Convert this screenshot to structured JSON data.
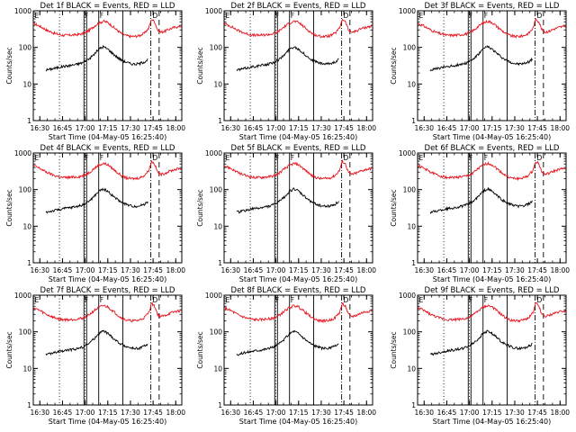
{
  "colors": {
    "events": "#000000",
    "lld": "#e8141e",
    "axis": "#000000",
    "background": "#ffffff"
  },
  "chart_data": [
    {
      "type": "line",
      "title": "Det 1f BLACK = Events, RED = LLD"
    },
    {
      "type": "line",
      "title": "Det 2f BLACK = Events, RED = LLD"
    },
    {
      "type": "line",
      "title": "Det 3f BLACK = Events, RED = LLD"
    },
    {
      "type": "line",
      "title": "Det 4f BLACK = Events, RED = LLD"
    },
    {
      "type": "line",
      "title": "Det 5f BLACK = Events, RED = LLD"
    },
    {
      "type": "line",
      "title": "Det 6f BLACK = Events, RED = LLD"
    },
    {
      "type": "line",
      "title": "Det 7f BLACK = Events, RED = LLD"
    },
    {
      "type": "line",
      "title": "Det 8f BLACK = Events, RED = LLD"
    },
    {
      "type": "line",
      "title": "Det 9f BLACK = Events, RED = LLD"
    }
  ],
  "shared": {
    "xlabel": "Start Time (04-May-05 16:25:40)",
    "ylabel": "Counts/sec",
    "xtick_labels": [
      "16:30",
      "16:45",
      "17:00",
      "17:15",
      "17:30",
      "17:45",
      "18:00"
    ],
    "xtick_minutes": [
      30,
      45,
      60,
      75,
      90,
      105,
      120
    ],
    "xlim_minutes": [
      25.67,
      124
    ],
    "yscale": "log",
    "ylim": [
      1,
      1000
    ],
    "ytick_labels": [
      "1",
      "10",
      "100",
      "1000"
    ],
    "ytick_values": [
      1,
      10,
      100,
      1000
    ],
    "marker_labels": [
      "E",
      "F",
      "F",
      "D"
    ],
    "marker_minutes": [
      26,
      59,
      69,
      104
    ],
    "dotted_minutes": [
      43,
      60
    ],
    "solid_minutes": [
      59.2,
      61,
      69,
      85
    ],
    "dashdot_minutes": [
      103.5
    ],
    "dashed_minutes": [
      109
    ],
    "events_series": {
      "name": "Events",
      "x_minutes": [
        34,
        40,
        45,
        50,
        55,
        58,
        60,
        63,
        66,
        69,
        72,
        75,
        78,
        81,
        84,
        87,
        90,
        93,
        96,
        99,
        102
      ],
      "values": [
        24,
        27,
        30,
        32,
        35,
        38,
        42,
        50,
        65,
        90,
        105,
        90,
        70,
        55,
        45,
        40,
        36,
        35,
        36,
        40,
        48
      ]
    },
    "lld_series": {
      "name": "LLD",
      "x_minutes": [
        26,
        30,
        35,
        40,
        45,
        50,
        55,
        58,
        60,
        63,
        66,
        69,
        72,
        75,
        78,
        81,
        84,
        87,
        90,
        93,
        96,
        99,
        102,
        104,
        106,
        108,
        110,
        113,
        116,
        120,
        124
      ],
      "values": [
        450,
        380,
        290,
        240,
        215,
        215,
        225,
        235,
        250,
        300,
        380,
        460,
        520,
        480,
        380,
        300,
        240,
        210,
        200,
        200,
        210,
        240,
        330,
        600,
        500,
        300,
        260,
        280,
        320,
        360,
        380
      ]
    }
  }
}
